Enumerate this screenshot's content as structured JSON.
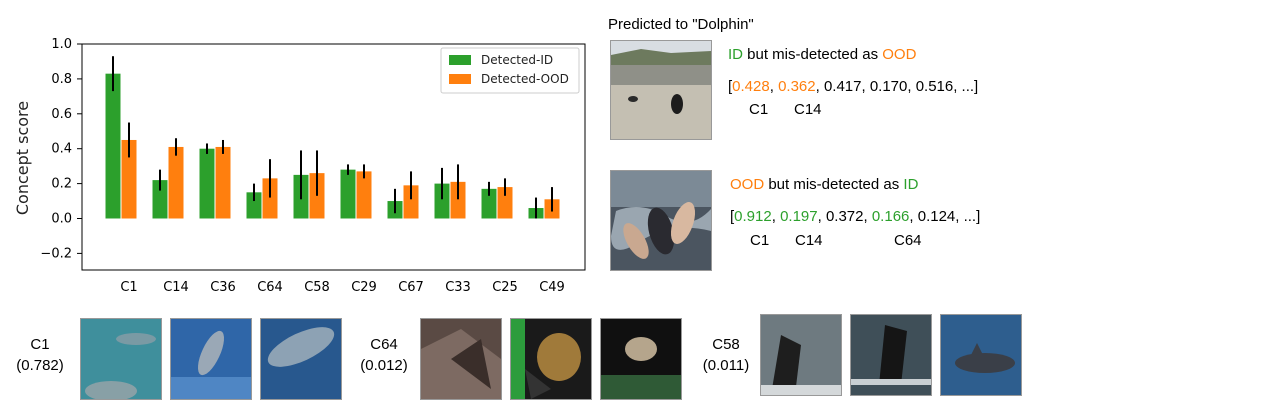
{
  "chart_data": {
    "type": "bar",
    "categories": [
      "C1",
      "C14",
      "C36",
      "C64",
      "C58",
      "C29",
      "C67",
      "C33",
      "C25",
      "C49"
    ],
    "ylabel": "Concept score",
    "ylim": [
      -0.3,
      1.0
    ],
    "yticks": [
      "−0.2",
      "0.0",
      "0.2",
      "0.4",
      "0.6",
      "0.8",
      "1.0"
    ],
    "legend_position": "top-right",
    "series": [
      {
        "name": "Detected-ID",
        "color": "#2ca02c",
        "values": [
          0.83,
          0.22,
          0.4,
          0.15,
          0.25,
          0.28,
          0.1,
          0.2,
          0.17,
          0.06
        ],
        "errors": [
          0.1,
          0.06,
          0.03,
          0.05,
          0.14,
          0.03,
          0.07,
          0.09,
          0.04,
          0.06
        ]
      },
      {
        "name": "Detected-OOD",
        "color": "#ff7f0e",
        "values": [
          0.45,
          0.41,
          0.41,
          0.23,
          0.26,
          0.27,
          0.19,
          0.21,
          0.18,
          0.11
        ],
        "errors": [
          0.1,
          0.05,
          0.04,
          0.11,
          0.13,
          0.04,
          0.08,
          0.1,
          0.05,
          0.07
        ]
      }
    ]
  },
  "panel": {
    "title": "Predicted to \"Dolphin\"",
    "case1": {
      "label_a": "ID",
      "label_mid": " but mis-detected as ",
      "label_b": "OOD",
      "bracket_open": "[",
      "score1": "0.428",
      "score2": "0.362",
      "rest": ", 0.417, 0.170, 0.516, ...]",
      "sep": ", ",
      "concept1": "C1",
      "concept2": "C14"
    },
    "case2": {
      "label_a": "OOD",
      "label_mid": " but mis-detected as ",
      "label_b": "ID",
      "bracket_open": "[",
      "score1": "0.912",
      "score2": "0.197",
      "score3": "0.372",
      "score4": "0.166",
      "tail": ", 0.124, ...]",
      "sep": ", ",
      "concept1": "C1",
      "concept2": "C14",
      "concept3": "C64"
    }
  },
  "concepts": [
    {
      "name": "C1",
      "score": "(0.782)"
    },
    {
      "name": "C64",
      "score": "(0.012)"
    },
    {
      "name": "C58",
      "score": "(0.011)"
    }
  ],
  "colors": {
    "id": "#2ca02c",
    "ood": "#ff7f0e"
  }
}
